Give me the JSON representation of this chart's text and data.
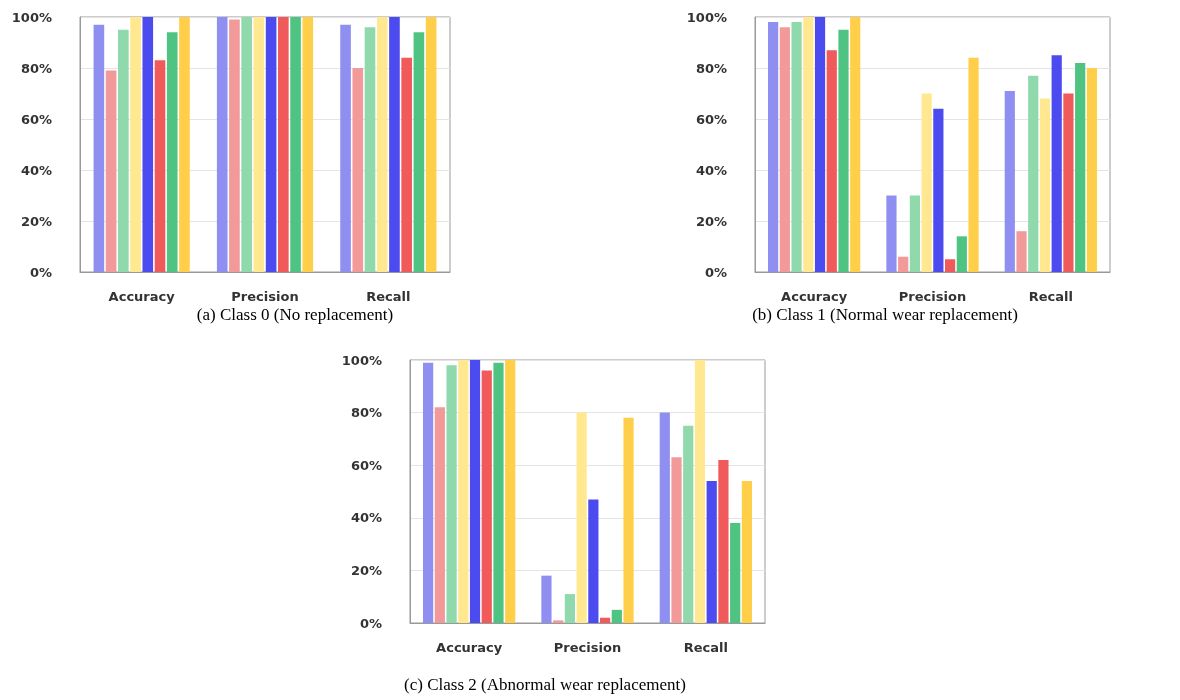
{
  "chart_data": [
    {
      "type": "bar",
      "title": "(a) Class 0 (No replacement)",
      "categories": [
        "Accuracy",
        "Precision",
        "Recall"
      ],
      "ylim": [
        0,
        100
      ],
      "yticks": [
        {
          "value": 0,
          "label": "0%"
        },
        {
          "value": 20,
          "label": "20%"
        },
        {
          "value": 40,
          "label": "40%"
        },
        {
          "value": 60,
          "label": "60%"
        },
        {
          "value": 80,
          "label": "80%"
        },
        {
          "value": 100,
          "label": "100%"
        }
      ],
      "grid": "y",
      "series": [
        {
          "color": "#8f8ff2",
          "values": [
            97,
            100,
            97
          ]
        },
        {
          "color": "#f29a9a",
          "values": [
            79,
            99,
            80
          ]
        },
        {
          "color": "#8fd9ac",
          "values": [
            95,
            100,
            96
          ]
        },
        {
          "color": "#ffe88f",
          "values": [
            100,
            100,
            100
          ]
        },
        {
          "color": "#4b4bf0",
          "values": [
            100,
            100,
            100
          ]
        },
        {
          "color": "#f05a5a",
          "values": [
            83,
            100,
            84
          ]
        },
        {
          "color": "#4fc482",
          "values": [
            94,
            100,
            94
          ]
        },
        {
          "color": "#ffcf4a",
          "values": [
            100,
            100,
            100
          ]
        }
      ]
    },
    {
      "type": "bar",
      "title": "(b) Class 1 (Normal wear replacement)",
      "categories": [
        "Accuracy",
        "Precision",
        "Recall"
      ],
      "ylim": [
        0,
        100
      ],
      "yticks": [
        {
          "value": 0,
          "label": "0%"
        },
        {
          "value": 20,
          "label": "20%"
        },
        {
          "value": 40,
          "label": "40%"
        },
        {
          "value": 60,
          "label": "60%"
        },
        {
          "value": 80,
          "label": "80%"
        },
        {
          "value": 100,
          "label": "100%"
        }
      ],
      "grid": "y",
      "series": [
        {
          "color": "#8f8ff2",
          "values": [
            98,
            30,
            71
          ]
        },
        {
          "color": "#f29a9a",
          "values": [
            96,
            6,
            16
          ]
        },
        {
          "color": "#8fd9ac",
          "values": [
            98,
            30,
            77
          ]
        },
        {
          "color": "#ffe88f",
          "values": [
            100,
            70,
            68
          ]
        },
        {
          "color": "#4b4bf0",
          "values": [
            100,
            64,
            85
          ]
        },
        {
          "color": "#f05a5a",
          "values": [
            87,
            5,
            70
          ]
        },
        {
          "color": "#4fc482",
          "values": [
            95,
            14,
            82
          ]
        },
        {
          "color": "#ffcf4a",
          "values": [
            100,
            84,
            80
          ]
        }
      ]
    },
    {
      "type": "bar",
      "title": "(c) Class 2 (Abnormal wear replacement)",
      "categories": [
        "Accuracy",
        "Precision",
        "Recall"
      ],
      "ylim": [
        0,
        100
      ],
      "yticks": [
        {
          "value": 0,
          "label": "0%"
        },
        {
          "value": 20,
          "label": "20%"
        },
        {
          "value": 40,
          "label": "40%"
        },
        {
          "value": 60,
          "label": "60%"
        },
        {
          "value": 80,
          "label": "80%"
        },
        {
          "value": 100,
          "label": "100%"
        }
      ],
      "grid": "y",
      "series": [
        {
          "color": "#8f8ff2",
          "values": [
            99,
            18,
            80
          ]
        },
        {
          "color": "#f29a9a",
          "values": [
            82,
            1,
            63
          ]
        },
        {
          "color": "#8fd9ac",
          "values": [
            98,
            11,
            75
          ]
        },
        {
          "color": "#ffe88f",
          "values": [
            100,
            80,
            100
          ]
        },
        {
          "color": "#4b4bf0",
          "values": [
            100,
            47,
            54
          ]
        },
        {
          "color": "#f05a5a",
          "values": [
            96,
            2,
            62
          ]
        },
        {
          "color": "#4fc482",
          "values": [
            99,
            5,
            38
          ]
        },
        {
          "color": "#ffcf4a",
          "values": [
            100,
            78,
            54
          ]
        }
      ]
    }
  ]
}
